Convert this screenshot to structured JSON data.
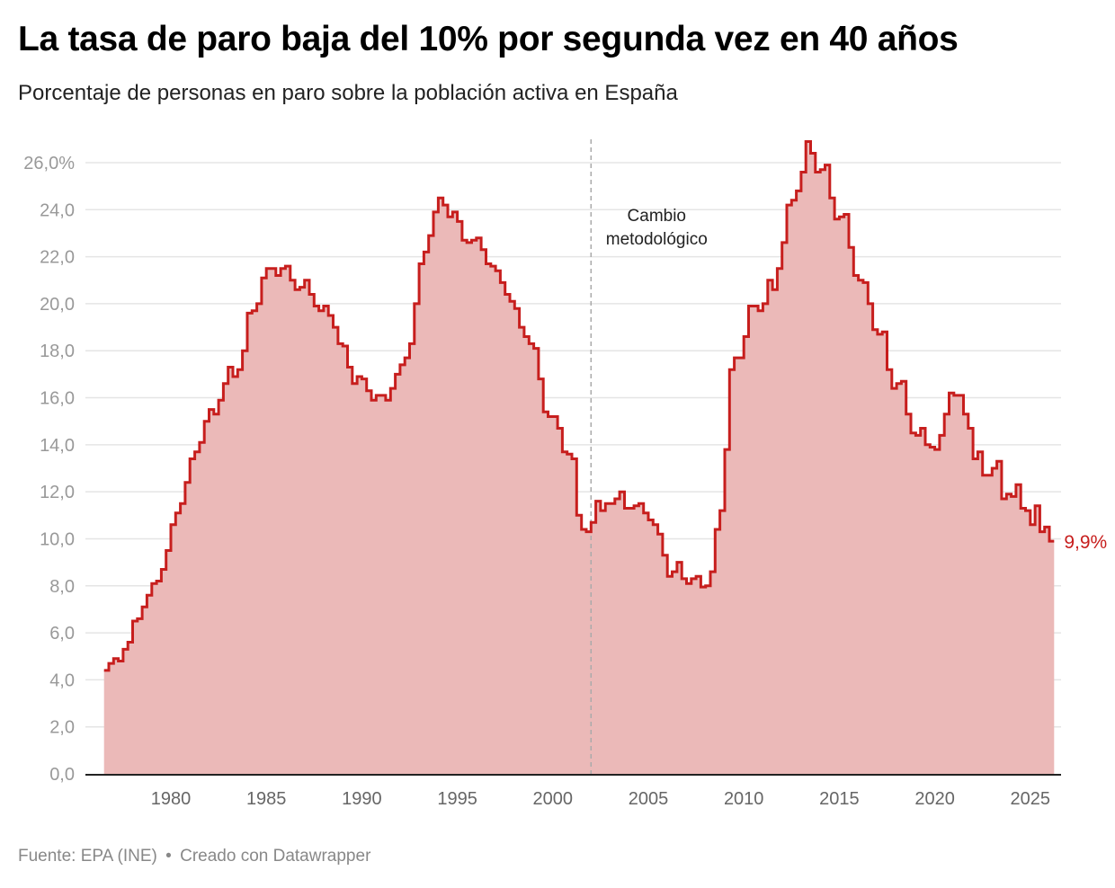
{
  "header": {
    "title": "La tasa de paro baja del 10% por segunda vez en 40 años",
    "subtitle": "Porcentaje de personas en paro sobre la población activa en España"
  },
  "footer": {
    "source": "Fuente: EPA (INE)",
    "separator": "•",
    "credit": "Creado con Datawrapper"
  },
  "colors": {
    "line": "#c71e1d",
    "area": "#ebb9b8",
    "grid": "#e5e5e5",
    "axis": "#222222",
    "annotation_line": "#aaaaaa"
  },
  "chart_data": {
    "type": "area",
    "step": true,
    "title": "La tasa de paro baja del 10% por segunda vez en 40 años",
    "subtitle": "Porcentaje de personas en paro sobre la población activa en España",
    "xlabel": "",
    "ylabel": "",
    "ylim": [
      0,
      26
    ],
    "xlim": [
      1976.5,
      2025.75
    ],
    "grid": true,
    "y_ticks": [
      0,
      2,
      4,
      6,
      8,
      10,
      12,
      14,
      16,
      18,
      20,
      22,
      24,
      26
    ],
    "y_tick_labels": [
      "0,0",
      "2,0",
      "4,0",
      "6,0",
      "8,0",
      "10,0",
      "12,0",
      "14,0",
      "16,0",
      "18,0",
      "20,0",
      "22,0",
      "24,0",
      "26,0%"
    ],
    "x_ticks": [
      1980,
      1985,
      1990,
      1995,
      2000,
      2005,
      2010,
      2015,
      2020,
      2025
    ],
    "x_tick_labels": [
      "1980",
      "1985",
      "1990",
      "1995",
      "2000",
      "2005",
      "2010",
      "2015",
      "2020",
      "2025"
    ],
    "start": 1976.5,
    "frequency": "quarterly",
    "series": [
      {
        "name": "Tasa de paro",
        "values": [
          4.4,
          4.7,
          4.9,
          4.8,
          5.3,
          5.6,
          6.5,
          6.6,
          7.1,
          7.6,
          8.1,
          8.2,
          8.7,
          9.5,
          10.6,
          11.1,
          11.5,
          12.4,
          13.4,
          13.7,
          14.1,
          15.0,
          15.5,
          15.3,
          15.9,
          16.6,
          17.3,
          16.9,
          17.2,
          18.0,
          19.6,
          19.7,
          20.0,
          21.1,
          21.5,
          21.5,
          21.2,
          21.5,
          21.6,
          21.0,
          20.6,
          20.7,
          21.0,
          20.4,
          19.9,
          19.7,
          19.9,
          19.5,
          19.0,
          18.3,
          18.2,
          17.3,
          16.6,
          16.9,
          16.8,
          16.3,
          15.9,
          16.1,
          16.1,
          15.9,
          16.4,
          17.0,
          17.4,
          17.7,
          18.3,
          20.0,
          21.7,
          22.2,
          22.9,
          23.9,
          24.5,
          24.2,
          23.7,
          23.9,
          23.5,
          22.7,
          22.6,
          22.7,
          22.8,
          22.3,
          21.7,
          21.6,
          21.4,
          20.9,
          20.4,
          20.1,
          19.8,
          19.0,
          18.6,
          18.3,
          18.1,
          16.8,
          15.4,
          15.2,
          15.2,
          14.7,
          13.7,
          13.6,
          13.4,
          11.0,
          10.4,
          10.3,
          10.7,
          11.6,
          11.2,
          11.5,
          11.5,
          11.7,
          12.0,
          11.3,
          11.3,
          11.4,
          11.5,
          11.1,
          10.8,
          10.6,
          10.2,
          9.3,
          8.4,
          8.6,
          9.0,
          8.3,
          8.1,
          8.3,
          8.4,
          7.95,
          8.0,
          8.6,
          10.4,
          11.2,
          13.8,
          17.2,
          17.7,
          17.7,
          18.6,
          19.9,
          19.9,
          19.7,
          20.0,
          21.0,
          20.6,
          21.5,
          22.6,
          24.2,
          24.4,
          24.8,
          25.6,
          26.9,
          26.4,
          25.6,
          25.7,
          25.9,
          24.5,
          23.6,
          23.7,
          23.8,
          22.4,
          21.2,
          21.0,
          20.9,
          20.0,
          18.9,
          18.7,
          18.8,
          17.2,
          16.4,
          16.6,
          16.7,
          15.3,
          14.5,
          14.4,
          14.7,
          14.0,
          13.9,
          13.8,
          14.4,
          15.3,
          16.2,
          16.1,
          16.1,
          15.3,
          14.7,
          13.4,
          13.7,
          12.7,
          12.7,
          13.0,
          13.3,
          11.7,
          11.9,
          11.8,
          12.3,
          11.3,
          11.2,
          10.6,
          11.4,
          10.3,
          10.5,
          9.9
        ]
      }
    ],
    "annotations": [
      {
        "x": 2002,
        "type": "vline",
        "text_line1": "Cambio",
        "text_line2": "metodológico"
      }
    ],
    "end_label": "9,9%"
  }
}
